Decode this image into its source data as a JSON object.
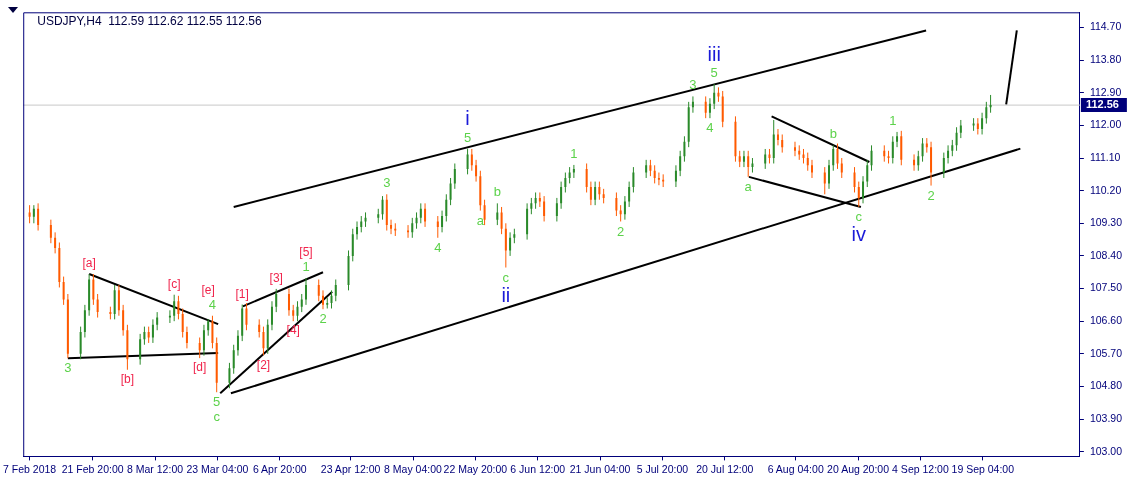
{
  "chart_data": {
    "type": "candlestick",
    "title": "USDJPY,H4  112.59 112.62 112.55 112.56",
    "x": [
      "2018-02-07",
      "2018-02-08",
      "2018-02-09",
      "2018-02-12",
      "2018-02-13",
      "2018-02-14",
      "2018-02-15",
      "2018-02-16",
      "2018-02-19",
      "2018-02-20",
      "2018-02-21",
      "2018-02-22",
      "2018-02-23",
      "2018-02-26",
      "2018-02-27",
      "2018-02-28",
      "2018-03-01",
      "2018-03-02",
      "2018-03-05",
      "2018-03-06",
      "2018-03-07",
      "2018-03-08",
      "2018-03-09",
      "2018-03-12",
      "2018-03-13",
      "2018-03-14",
      "2018-03-15",
      "2018-03-16",
      "2018-03-19",
      "2018-03-20",
      "2018-03-21",
      "2018-03-22",
      "2018-03-23",
      "2018-03-26",
      "2018-03-27",
      "2018-03-28",
      "2018-03-29",
      "2018-03-30",
      "2018-04-02",
      "2018-04-03",
      "2018-04-04",
      "2018-04-05",
      "2018-04-06",
      "2018-04-09",
      "2018-04-10",
      "2018-04-11",
      "2018-04-12",
      "2018-04-13",
      "2018-04-16",
      "2018-04-17",
      "2018-04-18",
      "2018-04-19",
      "2018-04-20",
      "2018-04-23",
      "2018-04-24",
      "2018-04-25",
      "2018-04-26",
      "2018-04-27",
      "2018-04-30",
      "2018-05-01",
      "2018-05-02",
      "2018-05-03",
      "2018-05-04",
      "2018-05-07",
      "2018-05-08",
      "2018-05-09",
      "2018-05-10",
      "2018-05-11",
      "2018-05-14",
      "2018-05-15",
      "2018-05-16",
      "2018-05-17",
      "2018-05-18",
      "2018-05-21",
      "2018-05-22",
      "2018-05-23",
      "2018-05-24",
      "2018-05-25",
      "2018-05-28",
      "2018-05-29",
      "2018-05-30",
      "2018-05-31",
      "2018-06-01",
      "2018-06-04",
      "2018-06-05",
      "2018-06-06",
      "2018-06-07",
      "2018-06-08",
      "2018-06-11",
      "2018-06-12",
      "2018-06-13",
      "2018-06-14",
      "2018-06-15",
      "2018-06-18",
      "2018-06-19",
      "2018-06-20",
      "2018-06-21",
      "2018-06-22",
      "2018-06-25",
      "2018-06-26",
      "2018-06-27",
      "2018-06-28",
      "2018-06-29",
      "2018-07-02",
      "2018-07-03",
      "2018-07-04",
      "2018-07-05",
      "2018-07-06",
      "2018-07-09",
      "2018-07-10",
      "2018-07-11",
      "2018-07-12",
      "2018-07-13",
      "2018-07-16",
      "2018-07-17",
      "2018-07-18",
      "2018-07-19",
      "2018-07-20",
      "2018-07-23",
      "2018-07-24",
      "2018-07-25",
      "2018-07-26",
      "2018-07-27",
      "2018-07-30",
      "2018-07-31",
      "2018-08-01",
      "2018-08-02",
      "2018-08-03",
      "2018-08-06",
      "2018-08-07",
      "2018-08-08",
      "2018-08-09",
      "2018-08-10",
      "2018-08-13",
      "2018-08-14",
      "2018-08-15",
      "2018-08-16",
      "2018-08-17",
      "2018-08-20",
      "2018-08-21",
      "2018-08-22",
      "2018-08-23",
      "2018-08-24",
      "2018-08-27",
      "2018-08-28",
      "2018-08-29",
      "2018-08-30",
      "2018-08-31",
      "2018-09-03",
      "2018-09-04",
      "2018-09-05",
      "2018-09-06",
      "2018-09-07",
      "2018-09-10",
      "2018-09-11",
      "2018-09-12",
      "2018-09-13",
      "2018-09-14",
      "2018-09-17",
      "2018-09-18",
      "2018-09-19",
      "2018-09-20",
      "2018-09-21"
    ],
    "ohlc": [
      [
        109.6,
        109.8,
        109.3,
        109.48
      ],
      [
        109.48,
        109.8,
        109.3,
        109.7
      ],
      [
        109.7,
        109.85,
        109.1,
        109.25
      ],
      [
        109.25,
        109.4,
        108.75,
        108.9
      ],
      [
        108.9,
        109.05,
        108.47,
        108.62
      ],
      [
        108.62,
        108.77,
        107.53,
        107.68
      ],
      [
        107.68,
        107.83,
        107.05,
        107.2
      ],
      [
        107.2,
        107.35,
        105.58,
        105.7
      ],
      [
        105.7,
        106.45,
        105.55,
        106.3
      ],
      [
        106.3,
        107.05,
        106.15,
        106.9
      ],
      [
        106.9,
        107.9,
        106.75,
        107.75
      ],
      [
        107.75,
        107.9,
        107.05,
        107.2
      ],
      [
        107.2,
        107.35,
        106.7,
        106.85
      ],
      [
        106.85,
        107.0,
        106.65,
        106.8
      ],
      [
        106.8,
        107.6,
        106.65,
        107.45
      ],
      [
        107.45,
        107.6,
        106.75,
        106.9
      ],
      [
        106.9,
        107.05,
        106.2,
        106.35
      ],
      [
        106.35,
        106.5,
        105.26,
        105.55
      ],
      [
        105.55,
        106.25,
        105.4,
        106.1
      ],
      [
        106.1,
        106.45,
        105.95,
        106.3
      ],
      [
        106.3,
        106.45,
        106.0,
        106.15
      ],
      [
        106.15,
        106.65,
        106.0,
        106.5
      ],
      [
        106.5,
        106.85,
        106.35,
        106.7
      ],
      [
        106.7,
        106.9,
        106.55,
        106.75
      ],
      [
        106.75,
        107.33,
        106.6,
        107.15
      ],
      [
        107.15,
        107.3,
        106.65,
        106.8
      ],
      [
        106.8,
        106.95,
        106.15,
        106.3
      ],
      [
        106.3,
        106.45,
        105.85,
        106.0
      ],
      [
        106.0,
        106.15,
        105.58,
        105.8
      ],
      [
        105.8,
        106.5,
        105.65,
        106.35
      ],
      [
        106.35,
        106.66,
        106.2,
        106.6
      ],
      [
        106.6,
        106.75,
        105.85,
        106.0
      ],
      [
        106.0,
        106.15,
        104.64,
        104.9
      ],
      [
        104.9,
        105.45,
        104.75,
        105.3
      ],
      [
        105.3,
        105.95,
        105.15,
        105.8
      ],
      [
        105.8,
        106.35,
        105.65,
        106.2
      ],
      [
        106.2,
        107.06,
        106.05,
        106.95
      ],
      [
        106.95,
        107.1,
        106.35,
        106.5
      ],
      [
        106.5,
        106.65,
        106.15,
        106.3
      ],
      [
        106.3,
        106.45,
        105.66,
        105.85
      ],
      [
        105.85,
        106.65,
        105.7,
        106.5
      ],
      [
        106.5,
        107.15,
        106.35,
        107.0
      ],
      [
        107.0,
        107.49,
        106.85,
        107.35
      ],
      [
        107.35,
        107.5,
        106.75,
        106.9
      ],
      [
        106.9,
        107.05,
        106.6,
        106.75
      ],
      [
        106.75,
        107.15,
        106.6,
        107.0
      ],
      [
        107.0,
        107.35,
        106.85,
        107.2
      ],
      [
        107.2,
        107.79,
        107.05,
        107.6
      ],
      [
        107.6,
        107.75,
        107.15,
        107.3
      ],
      [
        107.3,
        107.45,
        106.93,
        107.05
      ],
      [
        107.05,
        107.25,
        106.95,
        107.1
      ],
      [
        107.1,
        107.45,
        106.95,
        107.3
      ],
      [
        107.3,
        107.75,
        107.15,
        107.6
      ],
      [
        107.6,
        108.55,
        107.45,
        108.4
      ],
      [
        108.4,
        109.15,
        108.25,
        109.0
      ],
      [
        109.0,
        109.35,
        108.85,
        109.2
      ],
      [
        109.2,
        109.5,
        109.05,
        109.35
      ],
      [
        109.35,
        109.6,
        109.2,
        109.45
      ],
      [
        109.45,
        109.7,
        109.3,
        109.55
      ],
      [
        109.55,
        110.05,
        109.4,
        109.95
      ],
      [
        109.95,
        110.1,
        109.1,
        109.25
      ],
      [
        109.25,
        109.4,
        109.0,
        109.15
      ],
      [
        109.15,
        109.3,
        108.95,
        109.1
      ],
      [
        109.1,
        109.25,
        108.9,
        109.05
      ],
      [
        109.05,
        109.45,
        108.9,
        109.3
      ],
      [
        109.3,
        109.6,
        109.15,
        109.45
      ],
      [
        109.45,
        109.85,
        109.3,
        109.7
      ],
      [
        109.7,
        109.85,
        109.2,
        109.35
      ],
      [
        109.35,
        109.5,
        108.9,
        109.2
      ],
      [
        109.2,
        109.65,
        109.05,
        109.5
      ],
      [
        109.5,
        110.1,
        109.35,
        109.95
      ],
      [
        109.95,
        110.55,
        109.8,
        110.4
      ],
      [
        110.4,
        110.95,
        110.25,
        110.8
      ],
      [
        110.8,
        111.36,
        110.65,
        111.2
      ],
      [
        111.2,
        111.35,
        110.75,
        110.9
      ],
      [
        110.9,
        111.05,
        110.45,
        110.6
      ],
      [
        110.6,
        110.75,
        109.65,
        109.8
      ],
      [
        109.8,
        109.95,
        109.25,
        109.4
      ],
      [
        109.4,
        109.85,
        109.25,
        109.6
      ],
      [
        109.6,
        109.75,
        109.0,
        109.15
      ],
      [
        109.15,
        109.3,
        108.08,
        108.55
      ],
      [
        108.55,
        109.05,
        108.4,
        108.9
      ],
      [
        108.9,
        109.15,
        108.75,
        109.0
      ],
      [
        109.0,
        109.85,
        108.85,
        109.7
      ],
      [
        109.7,
        110.0,
        109.55,
        109.85
      ],
      [
        109.85,
        110.15,
        109.7,
        110.0
      ],
      [
        110.0,
        110.15,
        109.75,
        109.9
      ],
      [
        109.9,
        110.05,
        109.35,
        109.5
      ],
      [
        109.5,
        110.0,
        109.35,
        109.85
      ],
      [
        109.85,
        110.45,
        109.7,
        110.3
      ],
      [
        110.3,
        110.7,
        110.15,
        110.55
      ],
      [
        110.55,
        110.85,
        110.4,
        110.7
      ],
      [
        110.7,
        110.91,
        110.55,
        110.8
      ],
      [
        110.8,
        110.95,
        110.15,
        110.3
      ],
      [
        110.3,
        110.45,
        109.8,
        109.95
      ],
      [
        109.95,
        110.45,
        109.8,
        110.3
      ],
      [
        110.3,
        110.45,
        109.95,
        110.1
      ],
      [
        110.1,
        110.25,
        109.85,
        110.0
      ],
      [
        110.0,
        110.15,
        109.5,
        109.65
      ],
      [
        109.65,
        109.8,
        109.35,
        109.55
      ],
      [
        109.55,
        110.05,
        109.4,
        109.9
      ],
      [
        109.9,
        110.45,
        109.75,
        110.3
      ],
      [
        110.3,
        110.85,
        110.15,
        110.7
      ],
      [
        110.7,
        111.05,
        110.55,
        110.9
      ],
      [
        110.9,
        111.05,
        110.6,
        110.75
      ],
      [
        110.75,
        110.9,
        110.4,
        110.55
      ],
      [
        110.55,
        110.7,
        110.35,
        110.5
      ],
      [
        110.5,
        110.65,
        110.3,
        110.45
      ],
      [
        110.45,
        110.9,
        110.3,
        110.75
      ],
      [
        110.75,
        111.3,
        110.6,
        111.15
      ],
      [
        111.15,
        111.7,
        111.0,
        111.55
      ],
      [
        111.55,
        112.65,
        111.4,
        112.5
      ],
      [
        112.5,
        112.8,
        112.35,
        112.65
      ],
      [
        112.65,
        112.8,
        112.2,
        112.35
      ],
      [
        112.35,
        112.75,
        112.2,
        112.6
      ],
      [
        112.6,
        113.14,
        112.45,
        112.9
      ],
      [
        112.9,
        113.05,
        112.65,
        112.8
      ],
      [
        112.8,
        112.95,
        111.95,
        112.1
      ],
      [
        112.1,
        112.25,
        111.0,
        111.15
      ],
      [
        111.15,
        111.3,
        110.85,
        111.0
      ],
      [
        111.0,
        111.3,
        110.85,
        111.15
      ],
      [
        111.15,
        111.3,
        110.58,
        110.85
      ],
      [
        110.85,
        111.1,
        110.7,
        110.95
      ],
      [
        110.95,
        111.35,
        110.8,
        111.2
      ],
      [
        111.2,
        111.35,
        110.95,
        111.1
      ],
      [
        111.1,
        112.15,
        110.95,
        111.75
      ],
      [
        111.75,
        111.9,
        111.45,
        111.6
      ],
      [
        111.6,
        111.75,
        111.25,
        111.4
      ],
      [
        111.4,
        111.55,
        111.15,
        111.3
      ],
      [
        111.3,
        111.45,
        111.05,
        111.2
      ],
      [
        111.2,
        111.35,
        110.95,
        111.1
      ],
      [
        111.1,
        111.25,
        110.75,
        110.9
      ],
      [
        110.9,
        111.05,
        110.55,
        110.7
      ],
      [
        110.7,
        110.85,
        110.1,
        110.4
      ],
      [
        110.4,
        111.05,
        110.25,
        110.9
      ],
      [
        110.9,
        111.45,
        110.75,
        111.35
      ],
      [
        111.35,
        111.5,
        110.8,
        110.95
      ],
      [
        110.95,
        111.1,
        110.55,
        110.7
      ],
      [
        110.7,
        110.85,
        110.15,
        110.3
      ],
      [
        110.3,
        110.45,
        109.75,
        110.0
      ],
      [
        110.0,
        110.6,
        109.85,
        110.45
      ],
      [
        110.45,
        111.05,
        110.3,
        110.9
      ],
      [
        110.9,
        111.45,
        110.75,
        111.3
      ],
      [
        111.3,
        111.45,
        111.0,
        111.15
      ],
      [
        111.15,
        111.3,
        110.95,
        111.1
      ],
      [
        111.1,
        111.7,
        110.95,
        111.55
      ],
      [
        111.55,
        111.82,
        111.4,
        111.7
      ],
      [
        111.7,
        111.85,
        110.9,
        111.05
      ],
      [
        111.05,
        111.2,
        110.75,
        110.9
      ],
      [
        110.9,
        111.3,
        110.75,
        111.15
      ],
      [
        111.15,
        111.65,
        111.0,
        111.5
      ],
      [
        111.5,
        111.65,
        111.25,
        111.4
      ],
      [
        111.4,
        111.55,
        110.34,
        110.7
      ],
      [
        110.7,
        111.25,
        110.55,
        111.1
      ],
      [
        111.1,
        111.45,
        110.95,
        111.3
      ],
      [
        111.3,
        111.6,
        111.15,
        111.45
      ],
      [
        111.45,
        111.95,
        111.3,
        111.8
      ],
      [
        111.8,
        112.15,
        111.65,
        112.0
      ],
      [
        112.0,
        112.2,
        111.85,
        112.05
      ],
      [
        112.05,
        112.2,
        111.75,
        111.9
      ],
      [
        111.9,
        112.35,
        111.75,
        112.2
      ],
      [
        112.2,
        112.65,
        112.05,
        112.5
      ],
      [
        112.5,
        112.84,
        112.35,
        112.56
      ]
    ],
    "colors": [
      "#ff5a00",
      "#2a8a2a",
      "#ff5a00",
      "#ff5a00",
      "#ff5a00",
      "#ff5a00",
      "#ff5a00",
      "#ff5a00",
      "#2a8a2a",
      "#2a8a2a",
      "#2a8a2a",
      "#ff5a00",
      "#ff5a00",
      "#ff5a00",
      "#2a8a2a",
      "#ff5a00",
      "#ff5a00",
      "#ff5a00",
      "#2a8a2a",
      "#2a8a2a",
      "#ff5a00",
      "#2a8a2a",
      "#2a8a2a",
      "#2a8a2a",
      "#2a8a2a",
      "#ff5a00",
      "#ff5a00",
      "#ff5a00",
      "#ff5a00",
      "#2a8a2a",
      "#2a8a2a",
      "#ff5a00",
      "#ff5a00",
      "#2a8a2a",
      "#2a8a2a",
      "#2a8a2a",
      "#2a8a2a",
      "#ff5a00",
      "#ff5a00",
      "#ff5a00",
      "#2a8a2a",
      "#2a8a2a",
      "#2a8a2a",
      "#ff5a00",
      "#ff5a00",
      "#2a8a2a",
      "#2a8a2a",
      "#2a8a2a",
      "#ff5a00",
      "#ff5a00",
      "#2a8a2a",
      "#2a8a2a",
      "#2a8a2a",
      "#2a8a2a",
      "#2a8a2a",
      "#2a8a2a",
      "#2a8a2a",
      "#2a8a2a",
      "#2a8a2a",
      "#2a8a2a",
      "#ff5a00",
      "#ff5a00",
      "#ff5a00",
      "#ff5a00",
      "#2a8a2a",
      "#2a8a2a",
      "#2a8a2a",
      "#ff5a00",
      "#ff5a00",
      "#2a8a2a",
      "#2a8a2a",
      "#2a8a2a",
      "#2a8a2a",
      "#2a8a2a",
      "#ff5a00",
      "#ff5a00",
      "#ff5a00",
      "#ff5a00",
      "#2a8a2a",
      "#ff5a00",
      "#ff5a00",
      "#2a8a2a",
      "#2a8a2a",
      "#2a8a2a",
      "#2a8a2a",
      "#2a8a2a",
      "#ff5a00",
      "#ff5a00",
      "#2a8a2a",
      "#2a8a2a",
      "#2a8a2a",
      "#2a8a2a",
      "#2a8a2a",
      "#ff5a00",
      "#ff5a00",
      "#2a8a2a",
      "#ff5a00",
      "#ff5a00",
      "#ff5a00",
      "#ff5a00",
      "#2a8a2a",
      "#2a8a2a",
      "#2a8a2a",
      "#2a8a2a",
      "#ff5a00",
      "#ff5a00",
      "#ff5a00",
      "#ff5a00",
      "#2a8a2a",
      "#2a8a2a",
      "#2a8a2a",
      "#2a8a2a",
      "#2a8a2a",
      "#ff5a00",
      "#2a8a2a",
      "#2a8a2a",
      "#ff5a00",
      "#ff5a00",
      "#ff5a00",
      "#ff5a00",
      "#2a8a2a",
      "#ff5a00",
      "#2a8a2a",
      "#2a8a2a",
      "#ff5a00",
      "#2a8a2a",
      "#ff5a00",
      "#ff5a00",
      "#ff5a00",
      "#ff5a00",
      "#ff5a00",
      "#ff5a00",
      "#ff5a00",
      "#ff5a00",
      "#2a8a2a",
      "#2a8a2a",
      "#ff5a00",
      "#ff5a00",
      "#ff5a00",
      "#ff5a00",
      "#2a8a2a",
      "#2a8a2a",
      "#2a8a2a",
      "#ff5a00",
      "#ff5a00",
      "#2a8a2a",
      "#2a8a2a",
      "#ff5a00",
      "#ff5a00",
      "#2a8a2a",
      "#2a8a2a",
      "#ff5a00",
      "#ff5a00",
      "#2a8a2a",
      "#2a8a2a",
      "#2a8a2a",
      "#2a8a2a",
      "#2a8a2a",
      "#2a8a2a",
      "#ff5a00",
      "#2a8a2a",
      "#2a8a2a",
      "#2a8a2a"
    ],
    "xlim": [
      "2018-02-05T12:00",
      "2018-10-12T00:00"
    ],
    "xticks": [
      {
        "value": "2018-02-07T00:00",
        "label": "7 Feb 2018"
      },
      {
        "value": "2018-02-21T20:00",
        "label": "21 Feb 20:00"
      },
      {
        "value": "2018-03-08T12:00",
        "label": "8 Mar 12:00"
      },
      {
        "value": "2018-03-23T04:00",
        "label": "23 Mar 04:00"
      },
      {
        "value": "2018-04-06T20:00",
        "label": "6 Apr 20:00"
      },
      {
        "value": "2018-04-23T12:00",
        "label": "23 Apr 12:00"
      },
      {
        "value": "2018-05-08T04:00",
        "label": "8 May 04:00"
      },
      {
        "value": "2018-05-22T20:00",
        "label": "22 May 20:00"
      },
      {
        "value": "2018-06-06T12:00",
        "label": "6 Jun 12:00"
      },
      {
        "value": "2018-06-21T04:00",
        "label": "21 Jun 04:00"
      },
      {
        "value": "2018-07-05T20:00",
        "label": "5 Jul 20:00"
      },
      {
        "value": "2018-07-20T12:00",
        "label": "20 Jul 12:00"
      },
      {
        "value": "2018-08-06T04:00",
        "label": "6 Aug 04:00"
      },
      {
        "value": "2018-08-20T20:00",
        "label": "20 Aug 20:00"
      },
      {
        "value": "2018-09-04T12:00",
        "label": "4 Sep 12:00"
      },
      {
        "value": "2018-09-19T04:00",
        "label": "19 Sep 04:00"
      }
    ],
    "ylim": [
      102.87,
      115.12
    ],
    "yticks": [
      {
        "value": 103,
        "label": "103.00"
      },
      {
        "value": 103.9,
        "label": "103.90"
      },
      {
        "value": 104.8,
        "label": "104.80"
      },
      {
        "value": 105.7,
        "label": "105.70"
      },
      {
        "value": 106.6,
        "label": "106.60"
      },
      {
        "value": 107.5,
        "label": "107.50"
      },
      {
        "value": 108.4,
        "label": "108.40"
      },
      {
        "value": 109.3,
        "label": "109.30"
      },
      {
        "value": 110.2,
        "label": "110.20"
      },
      {
        "value": 111.1,
        "label": "111.10"
      },
      {
        "value": 112,
        "label": "112.00"
      },
      {
        "value": 112.9,
        "label": "112.90"
      },
      {
        "value": 113.8,
        "label": "113.80"
      },
      {
        "value": 114.7,
        "label": "114.70"
      }
    ],
    "ref_lines": [
      {
        "axis": "y",
        "value": 112.56,
        "label": "112.56",
        "color": "#c8c8c8"
      }
    ],
    "series": [
      {
        "type": "line",
        "color": "#000000",
        "x": [
          "2018-03-27T00:00",
          "2018-09-05T20:00"
        ],
        "values": [
          109.75,
          114.62
        ]
      },
      {
        "type": "line",
        "color": "#000000",
        "x": [
          "2018-03-26T08:00",
          "2018-09-28T00:00"
        ],
        "values": [
          104.61,
          111.36
        ]
      },
      {
        "type": "line",
        "color": "#000000",
        "x": [
          "2018-09-24T16:00",
          "2018-09-27T04:00"
        ],
        "values": [
          112.58,
          114.62
        ]
      },
      {
        "type": "line",
        "color": "#000000",
        "x": [
          "2018-02-21T00:00",
          "2018-03-23T08:00"
        ],
        "values": [
          107.9,
          106.52
        ]
      },
      {
        "type": "line",
        "color": "#000000",
        "x": [
          "2018-02-16T00:00",
          "2018-03-23T08:00"
        ],
        "values": [
          105.58,
          105.72
        ]
      },
      {
        "type": "line",
        "color": "#000000",
        "x": [
          "2018-03-29T04:00",
          "2018-04-17T00:00"
        ],
        "values": [
          107.01,
          107.95
        ]
      },
      {
        "type": "line",
        "color": "#000000",
        "x": [
          "2018-03-23T20:00",
          "2018-04-19T04:00"
        ],
        "values": [
          104.61,
          107.41
        ]
      },
      {
        "type": "line",
        "color": "#000000",
        "x": [
          "2018-07-31T12:00",
          "2018-08-23T12:00"
        ],
        "values": [
          112.25,
          110.99
        ]
      },
      {
        "type": "line",
        "color": "#000000",
        "x": [
          "2018-07-26T04:00",
          "2018-08-21T12:00"
        ],
        "values": [
          110.58,
          109.75
        ]
      }
    ],
    "annotations": [
      {
        "text": "3",
        "x": "2018-02-16",
        "y": 105.58
      },
      {
        "text": "4",
        "x": "2018-03-22",
        "y": 106.75
      },
      {
        "text": "5",
        "x": "2018-03-23",
        "y": 104.64
      },
      {
        "text": "1",
        "x": "2018-04-13",
        "y": 107.79
      },
      {
        "text": "2",
        "x": "2018-04-17",
        "y": 106.93
      },
      {
        "text": "3",
        "x": "2018-05-02",
        "y": 110.1
      },
      {
        "text": "4",
        "x": "2018-05-14",
        "y": 108.9
      },
      {
        "text": "5",
        "x": "2018-05-21",
        "y": 111.36
      },
      {
        "text": "a",
        "x": "2018-05-24",
        "y": 109.65
      },
      {
        "text": "b",
        "x": "2018-05-28",
        "y": 109.85
      },
      {
        "text": "c",
        "x": "2018-05-30",
        "y": 108.08
      },
      {
        "text": "1",
        "x": "2018-06-15",
        "y": 110.91
      },
      {
        "text": "2",
        "x": "2018-06-26",
        "y": 109.35
      },
      {
        "text": "3",
        "x": "2018-07-13",
        "y": 112.8
      },
      {
        "text": "4",
        "x": "2018-07-17",
        "y": 112.2
      },
      {
        "text": "5",
        "x": "2018-07-18",
        "y": 113.14
      },
      {
        "text": "a",
        "x": "2018-07-26",
        "y": 110.58
      },
      {
        "text": "b",
        "x": "2018-08-15",
        "y": 111.45
      },
      {
        "text": "c",
        "x": "2018-08-21",
        "y": 109.75
      },
      {
        "text": "1",
        "x": "2018-08-29",
        "y": 111.82
      },
      {
        "text": "2",
        "x": "2018-09-07",
        "y": 110.34
      },
      {
        "text": "[a]",
        "x": "2018-02-21",
        "y": 107.9
      },
      {
        "text": "[b]",
        "x": "2018-03-02",
        "y": 105.26
      },
      {
        "text": "[c]",
        "x": "2018-03-13",
        "y": 107.33
      },
      {
        "text": "[d]",
        "x": "2018-03-19",
        "y": 105.58
      },
      {
        "text": "[e]",
        "x": "2018-03-21",
        "y": 106.66
      },
      {
        "text": "[1]",
        "x": "2018-03-29",
        "y": 107.06
      },
      {
        "text": "[2]",
        "x": "2018-04-03",
        "y": 105.66
      },
      {
        "text": "[3]",
        "x": "2018-04-06",
        "y": 107.49
      },
      {
        "text": "[4]",
        "x": "2018-04-10",
        "y": 106.6
      },
      {
        "text": "[5]",
        "x": "2018-04-13",
        "y": 107.79
      },
      {
        "text": "c",
        "x": "2018-03-23",
        "y": 104.64
      },
      {
        "text": "i",
        "x": "2018-05-21",
        "y": 111.36
      },
      {
        "text": "ii",
        "x": "2018-05-30",
        "y": 108.08
      },
      {
        "text": "iii",
        "x": "2018-07-18",
        "y": 113.14
      },
      {
        "text": "iv",
        "x": "2018-08-21",
        "y": 109.75
      }
    ]
  }
}
